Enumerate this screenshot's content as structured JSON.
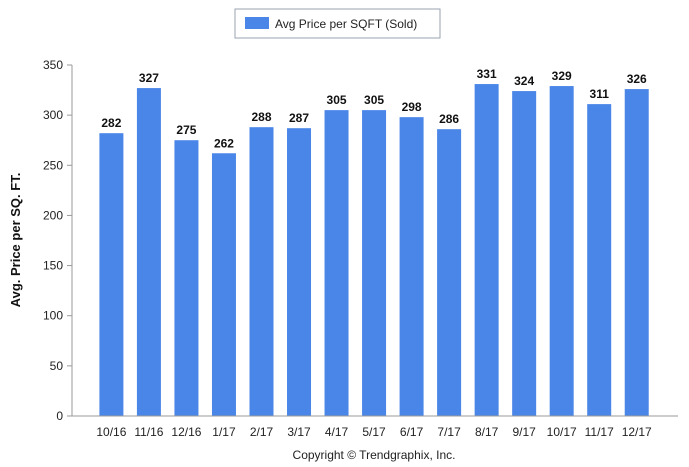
{
  "chart_data": {
    "type": "bar",
    "categories": [
      "10/16",
      "11/16",
      "12/16",
      "1/17",
      "2/17",
      "3/17",
      "4/17",
      "5/17",
      "6/17",
      "7/17",
      "8/17",
      "9/17",
      "10/17",
      "11/17",
      "12/17"
    ],
    "series": [
      {
        "name": "Avg Price per SQFT (Sold)",
        "values": [
          282,
          327,
          275,
          262,
          288,
          287,
          305,
          305,
          298,
          286,
          331,
          324,
          329,
          311,
          326
        ]
      }
    ],
    "ylabel": "Avg. Price per SQ. FT.",
    "xlabel": "",
    "ylim": [
      0,
      350
    ],
    "yticks": [
      0,
      50,
      100,
      150,
      200,
      250,
      300,
      350
    ],
    "grid": false,
    "legend": "top-center",
    "bar_color": "#4a86e8"
  },
  "footer": {
    "copyright": "Copyright © Trendgraphix, Inc."
  }
}
